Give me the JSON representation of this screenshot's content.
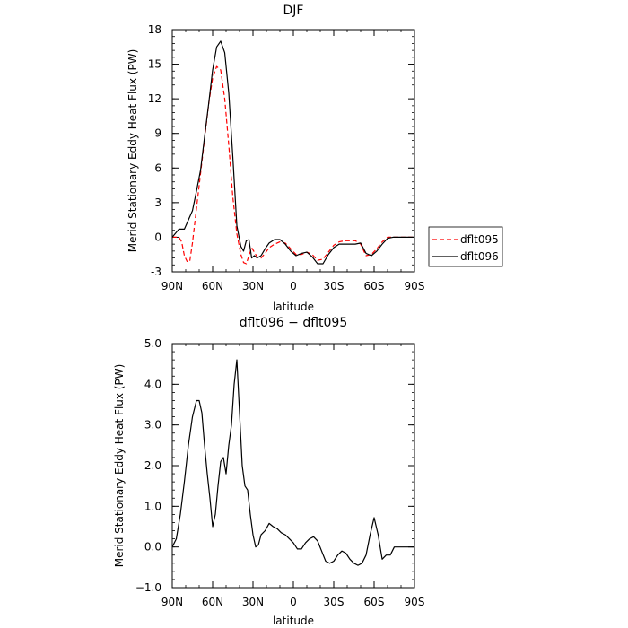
{
  "chart_data": [
    {
      "type": "line",
      "title": "DJF",
      "xlabel": "latitude",
      "ylabel": "Merid Stationary Eddy Heat Flux (PW)",
      "xlim": [
        90,
        -90
      ],
      "ylim": [
        -3,
        18
      ],
      "x_ticks": [
        90,
        60,
        30,
        0,
        -30,
        -60,
        -90
      ],
      "x_tick_labels": [
        "90N",
        "60N",
        "30N",
        "0",
        "30S",
        "60S",
        "90S"
      ],
      "y_ticks": [
        -3,
        0,
        3,
        6,
        9,
        12,
        15,
        18
      ],
      "y_tick_labels": [
        "-3",
        "0",
        "3",
        "6",
        "9",
        "12",
        "15",
        "18"
      ],
      "legend_position": "right",
      "series": [
        {
          "name": "dflt095",
          "color": "#ff0000",
          "dashed": true,
          "x": [
            90,
            85,
            83,
            81,
            79,
            77,
            75,
            72,
            69,
            66,
            63,
            60,
            57,
            54,
            51,
            48,
            45,
            42,
            39,
            37,
            35,
            33,
            31,
            29,
            27,
            24,
            21,
            18,
            14,
            10,
            6,
            2,
            -2,
            -6,
            -10,
            -14,
            -18,
            -22,
            -26,
            -30,
            -34,
            -38,
            -42,
            -46,
            -50,
            -54,
            -58,
            -62,
            -66,
            -70,
            -74,
            -78,
            -82,
            -86,
            -90
          ],
          "values": [
            0,
            0,
            -0.4,
            -1.6,
            -2.1,
            -2.1,
            -0.5,
            2.5,
            5.5,
            8.5,
            11.5,
            13.8,
            14.8,
            14.5,
            12.0,
            8.0,
            3.5,
            0.3,
            -1.5,
            -2.2,
            -2.3,
            -1.6,
            -0.9,
            -1.3,
            -1.7,
            -1.8,
            -1.4,
            -0.9,
            -0.6,
            -0.4,
            -0.5,
            -1.0,
            -1.5,
            -1.5,
            -1.3,
            -1.5,
            -2.0,
            -1.9,
            -1.3,
            -0.7,
            -0.4,
            -0.3,
            -0.3,
            -0.3,
            -0.6,
            -1.6,
            -1.5,
            -1.0,
            -0.4,
            0.0,
            0.0,
            0.0,
            0.0,
            0.0,
            0.0
          ]
        },
        {
          "name": "dflt096",
          "color": "#000000",
          "dashed": false,
          "x": [
            90,
            85,
            81,
            78,
            75,
            72,
            69,
            66,
            63,
            60,
            57,
            54,
            51,
            48,
            45,
            42,
            39,
            37,
            35,
            33,
            31,
            29,
            27,
            24,
            21,
            18,
            14,
            10,
            6,
            2,
            -2,
            -6,
            -10,
            -14,
            -18,
            -22,
            -26,
            -30,
            -34,
            -38,
            -42,
            -46,
            -50,
            -54,
            -58,
            -62,
            -66,
            -70,
            -74,
            -78,
            -82,
            -86,
            -90
          ],
          "values": [
            0,
            0.7,
            0.7,
            1.5,
            2.3,
            4.0,
            5.8,
            8.7,
            11.5,
            14.5,
            16.5,
            17.0,
            16.0,
            12.5,
            7.0,
            1.0,
            -0.8,
            -1.2,
            -0.3,
            -0.2,
            -1.8,
            -1.6,
            -1.8,
            -1.6,
            -1.0,
            -0.5,
            -0.2,
            -0.2,
            -0.6,
            -1.2,
            -1.6,
            -1.4,
            -1.3,
            -1.7,
            -2.3,
            -2.3,
            -1.5,
            -0.9,
            -0.6,
            -0.6,
            -0.6,
            -0.6,
            -0.5,
            -1.4,
            -1.6,
            -1.2,
            -0.6,
            -0.1,
            0.0,
            0.0,
            0.0,
            0.0,
            0.0
          ]
        }
      ]
    },
    {
      "type": "line",
      "title": "dflt096 − dflt095",
      "xlabel": "latitude",
      "ylabel": "Merid Stationary Eddy Heat Flux (PW)",
      "xlim": [
        90,
        -90
      ],
      "ylim": [
        -1.0,
        5.0
      ],
      "x_ticks": [
        90,
        60,
        30,
        0,
        -30,
        -60,
        -90
      ],
      "x_tick_labels": [
        "90N",
        "60N",
        "30N",
        "0",
        "30S",
        "60S",
        "90S"
      ],
      "y_ticks": [
        -1,
        0,
        1,
        2,
        3,
        4,
        5
      ],
      "y_tick_labels": [
        "−1.0",
        "0.0",
        "1.0",
        "2.0",
        "3.0",
        "4.0",
        "5.0"
      ],
      "series": [
        {
          "name": "",
          "color": "#000000",
          "dashed": false,
          "x": [
            90,
            87,
            84,
            81,
            78,
            75,
            72,
            70,
            68,
            66,
            64,
            62,
            60,
            58,
            56,
            54,
            52,
            50,
            48,
            46,
            44,
            42,
            40,
            38,
            36,
            34,
            32,
            30,
            28,
            26,
            24,
            21,
            18,
            15,
            12,
            9,
            6,
            3,
            0,
            -3,
            -6,
            -9,
            -12,
            -15,
            -18,
            -21,
            -24,
            -27,
            -30,
            -33,
            -36,
            -39,
            -42,
            -45,
            -48,
            -51,
            -54,
            -57,
            -60,
            -63,
            -66,
            -69,
            -72,
            -75,
            -78,
            -81,
            -84,
            -87,
            -90
          ],
          "values": [
            0.0,
            0.2,
            0.8,
            1.6,
            2.5,
            3.2,
            3.6,
            3.6,
            3.3,
            2.5,
            1.8,
            1.2,
            0.5,
            0.8,
            1.5,
            2.1,
            2.2,
            1.8,
            2.5,
            3.0,
            4.0,
            4.6,
            3.3,
            2.0,
            1.5,
            1.4,
            0.8,
            0.3,
            0.0,
            0.05,
            0.3,
            0.4,
            0.58,
            0.5,
            0.45,
            0.35,
            0.3,
            0.2,
            0.1,
            -0.05,
            -0.05,
            0.1,
            0.2,
            0.25,
            0.15,
            -0.1,
            -0.35,
            -0.4,
            -0.35,
            -0.2,
            -0.1,
            -0.15,
            -0.3,
            -0.4,
            -0.45,
            -0.4,
            -0.2,
            0.3,
            0.72,
            0.3,
            -0.3,
            -0.2,
            -0.2,
            0.0,
            0.0,
            0.0,
            0.0,
            0.0,
            0.0
          ]
        }
      ]
    }
  ]
}
